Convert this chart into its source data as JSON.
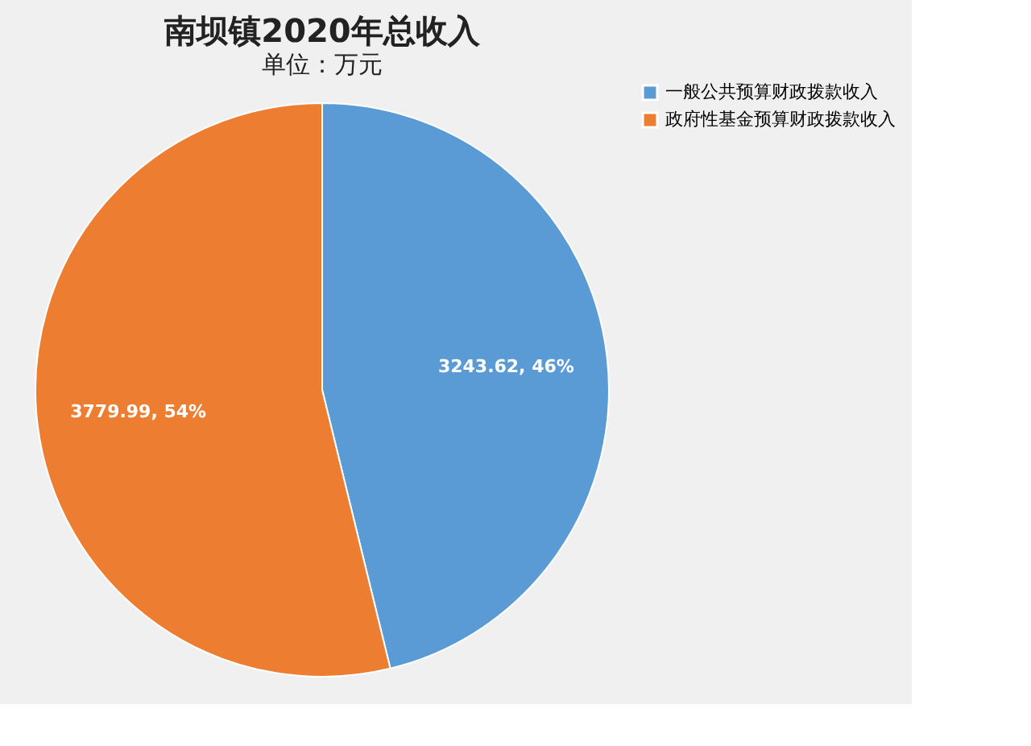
{
  "chart_data": {
    "type": "pie",
    "title": "南坝镇2020年总收入",
    "subtitle": "单位：万元",
    "categories": [
      "一般公共预算财政拨款收入",
      "政府性基金预算财政拨款收入"
    ],
    "values": [
      3243.62,
      3779.99
    ],
    "colors": [
      "#5b9bd5",
      "#ed7d31"
    ],
    "value_labels": [
      "3243.62, 46%",
      "3779.99, 54%"
    ],
    "legend": "right"
  }
}
